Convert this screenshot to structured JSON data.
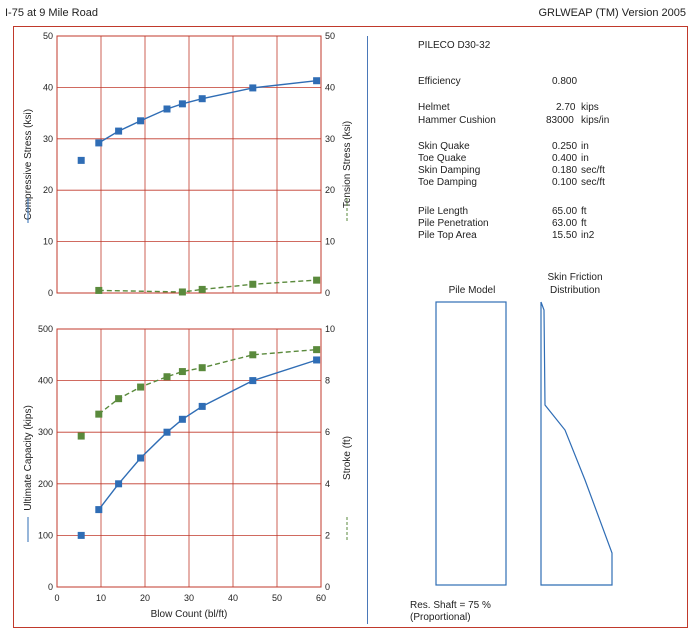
{
  "header": {
    "left_title": "I-75 at 9 Mile Road",
    "right_title": "GRLWEAP (TM) Version 2005"
  },
  "hammer": {
    "name": "PILECO  D30-32"
  },
  "parameters": [
    {
      "label": "Efficiency",
      "value": "0.800",
      "unit": ""
    },
    {
      "label": "Helmet",
      "value": "2.70",
      "unit": "kips"
    },
    {
      "label": "Hammer Cushion",
      "value": "83000",
      "unit": "kips/in"
    },
    {
      "label": "Skin Quake",
      "value": "0.250",
      "unit": "in"
    },
    {
      "label": "Toe Quake",
      "value": "0.400",
      "unit": "in"
    },
    {
      "label": "Skin Damping",
      "value": "0.180",
      "unit": "sec/ft"
    },
    {
      "label": "Toe Damping",
      "value": "0.100",
      "unit": "sec/ft"
    },
    {
      "label": "Pile Length",
      "value": "65.00",
      "unit": "ft"
    },
    {
      "label": "Pile Penetration",
      "value": "63.00",
      "unit": "ft"
    },
    {
      "label": "Pile Top Area",
      "value": "15.50",
      "unit": "in2"
    }
  ],
  "pile_model": {
    "title": "Pile Model",
    "skin_friction_title_line1": "Skin Friction",
    "skin_friction_title_line2": "Distribution",
    "res_shaft_line1": "Res. Shaft = 75 %",
    "res_shaft_line2": "(Proportional)"
  },
  "colors": {
    "grid": "#c0392b",
    "blue_series": "#2f6db5",
    "green_series": "#5a8a3c",
    "divider": "#4a78b8"
  },
  "chart_data": [
    {
      "type": "scatter",
      "xlabel": "",
      "xlim": [
        0,
        60
      ],
      "xticks": [
        0,
        10,
        20,
        30,
        40,
        50,
        60
      ],
      "left_axis": {
        "label": "Compressive Stress (ksi)",
        "ylim": [
          0,
          50
        ],
        "ticks": [
          0,
          10,
          20,
          30,
          40,
          50
        ]
      },
      "right_axis": {
        "label": "Tension Stress (ksi)",
        "ylim": [
          0,
          50
        ],
        "ticks": [
          0,
          10,
          20,
          30,
          40,
          50
        ]
      },
      "series": [
        {
          "axis": "left",
          "color": "#2f6db5",
          "line": "solid",
          "x": [
            5.5,
            9.5,
            14,
            19,
            25,
            28.5,
            33,
            44.5,
            59
          ],
          "y": [
            25.8,
            29.2,
            31.5,
            33.5,
            35.8,
            36.8,
            37.8,
            39.9,
            41.3
          ]
        },
        {
          "axis": "right",
          "color": "#5a8a3c",
          "line": "dashed",
          "x": [
            9.5,
            28.5,
            33,
            44.5,
            59
          ],
          "y": [
            0.5,
            0.2,
            0.7,
            1.7,
            2.5
          ]
        }
      ]
    },
    {
      "type": "scatter",
      "xlabel": "Blow Count (bl/ft)",
      "xlim": [
        0,
        60
      ],
      "xticks": [
        0,
        10,
        20,
        30,
        40,
        50,
        60
      ],
      "left_axis": {
        "label": "Ultimate Capacity (kips)",
        "ylim": [
          0,
          500
        ],
        "ticks": [
          0,
          100,
          200,
          300,
          400,
          500
        ]
      },
      "right_axis": {
        "label": "Stroke (ft)",
        "ylim": [
          0,
          10
        ],
        "ticks": [
          0,
          2,
          4,
          6,
          8,
          10
        ]
      },
      "series": [
        {
          "axis": "left",
          "color": "#2f6db5",
          "line": "solid",
          "x": [
            5.5,
            9.5,
            14,
            19,
            25,
            28.5,
            33,
            44.5,
            59
          ],
          "y": [
            100,
            150,
            200,
            250,
            300,
            325,
            350,
            400,
            440
          ]
        },
        {
          "axis": "right",
          "color": "#5a8a3c",
          "line": "dashed",
          "x": [
            5.5,
            9.5,
            14,
            19,
            25,
            28.5,
            33,
            44.5,
            59
          ],
          "y": [
            5.85,
            6.7,
            7.3,
            7.75,
            8.15,
            8.35,
            8.5,
            9.0,
            9.2
          ]
        }
      ]
    }
  ]
}
